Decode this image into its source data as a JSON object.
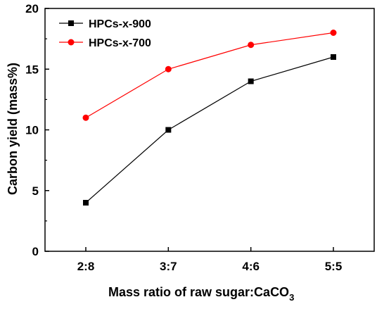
{
  "chart_data": {
    "type": "line",
    "categories": [
      "2:8",
      "3:7",
      "4:6",
      "5:5"
    ],
    "series": [
      {
        "name": "HPCs-x-900",
        "values": [
          4,
          10,
          14,
          16
        ],
        "color": "#000000",
        "marker": "square"
      },
      {
        "name": "HPCs-x-700",
        "values": [
          11,
          15,
          17,
          18
        ],
        "color": "#ff0000",
        "marker": "circle"
      }
    ],
    "xlabel": "Mass ratio of raw sugar:CaCO",
    "xlabel_subscript": "3",
    "ylabel": "Carbon yield (mass%)",
    "ylim": [
      0,
      20
    ],
    "yticks": [
      0,
      5,
      10,
      15,
      20
    ],
    "legend_position": "top-left",
    "grid": false
  }
}
